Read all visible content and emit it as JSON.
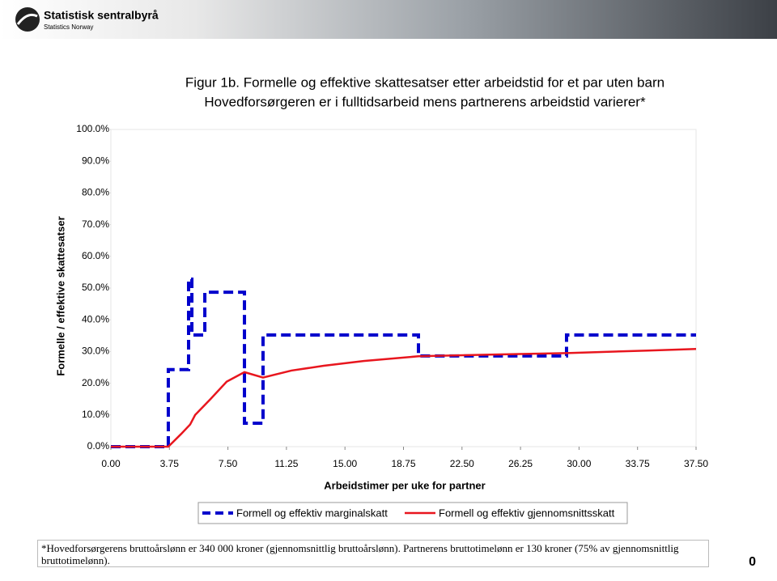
{
  "header": {
    "logo_name": "Statistisk sentralbyrå",
    "logo_sub": "Statistics Norway"
  },
  "chart_data": {
    "type": "line",
    "title": "Figur 1b. Formelle og effektive skattesatser etter arbeidstid for et par uten barn",
    "subtitle": "Hovedforsørgeren er i fulltidsarbeid mens partnerens arbeidstid varierer*",
    "x_label": "Arbeidstimer per uke for partner",
    "y_label": "Formelle / effektive skattesatser",
    "xlim": [
      0,
      37.5
    ],
    "ylim": [
      0,
      100
    ],
    "xticks": [
      {
        "value": 0,
        "label": "0.00"
      },
      {
        "value": 3.75,
        "label": "3.75"
      },
      {
        "value": 7.5,
        "label": "7.50"
      },
      {
        "value": 11.25,
        "label": "11.25"
      },
      {
        "value": 15,
        "label": "15.00"
      },
      {
        "value": 18.75,
        "label": "18.75"
      },
      {
        "value": 22.5,
        "label": "22.50"
      },
      {
        "value": 26.25,
        "label": "26.25"
      },
      {
        "value": 30,
        "label": "30.00"
      },
      {
        "value": 33.75,
        "label": "33.75"
      },
      {
        "value": 37.5,
        "label": "37.50"
      }
    ],
    "yticks": [
      {
        "value": 0,
        "label": "0.0%"
      },
      {
        "value": 10,
        "label": "10.0%"
      },
      {
        "value": 20,
        "label": "20.0%"
      },
      {
        "value": 30,
        "label": "30.0%"
      },
      {
        "value": 40,
        "label": "40.0%"
      },
      {
        "value": 50,
        "label": "50.0%"
      },
      {
        "value": 60,
        "label": "60.0%"
      },
      {
        "value": 70,
        "label": "70.0%"
      },
      {
        "value": 80,
        "label": "80.0%"
      },
      {
        "value": 90,
        "label": "90.0%"
      },
      {
        "value": 100,
        "label": "100.0%"
      }
    ],
    "legend": "bottom",
    "series": [
      {
        "name": "Formell og effektiv marginalskatt",
        "color": "#0000cc",
        "dashed": true,
        "x": [
          0,
          3.68,
          3.68,
          4.98,
          4.98,
          5.19,
          5.19,
          6.02,
          6.02,
          8.56,
          8.56,
          9.75,
          9.75,
          19.71,
          19.71,
          29.2,
          29.2,
          37.5
        ],
        "values": [
          0,
          0,
          24.3,
          24.3,
          52.8,
          52.8,
          35.2,
          35.2,
          48.7,
          48.7,
          7.4,
          7.4,
          35.2,
          35.2,
          28.6,
          28.6,
          35.2,
          35.2
        ]
      },
      {
        "name": "Formell og effektiv gjennomsnittsskatt",
        "color": "#e8161e",
        "dashed": false,
        "x": [
          0,
          3.68,
          4.5,
          5.08,
          5.4,
          6.38,
          7.42,
          8.56,
          9.75,
          11.57,
          13.64,
          16.2,
          19.71,
          24.0,
          29.2,
          34.4,
          37.5
        ],
        "values": [
          0,
          0,
          4,
          7,
          10,
          15,
          20.5,
          23.5,
          21.8,
          24,
          25.5,
          27,
          28.5,
          29,
          29.5,
          30.3,
          30.8
        ]
      }
    ]
  },
  "footnote": "*Hovedforsørgerens bruttoårslønn er 340 000 kroner (gjennomsnittlig bruttoårslønn). Partnerens bruttotimelønn er 130 kroner (75% av gjennomsnittlig bruttotimelønn).",
  "page_number": "0"
}
